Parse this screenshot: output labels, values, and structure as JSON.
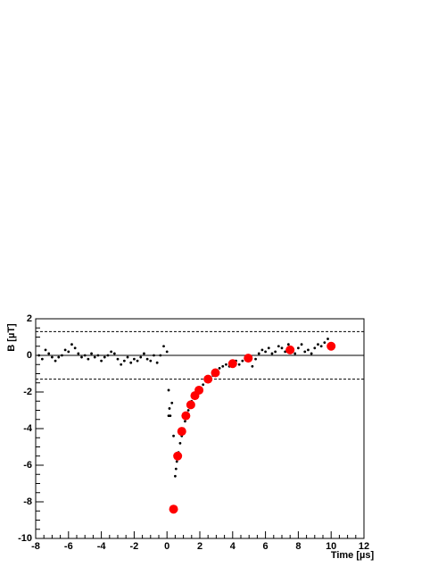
{
  "chart_data": {
    "type": "scatter",
    "x_label": "Time [µs]",
    "y_label": "B [µT]",
    "xlim": [
      -8,
      12
    ],
    "ylim": [
      -10,
      2
    ],
    "xticks": [
      -8,
      -6,
      -4,
      -2,
      0,
      2,
      4,
      6,
      8,
      10,
      12
    ],
    "yticks": [
      -10,
      -8,
      -6,
      -4,
      -2,
      0,
      2
    ],
    "reference_lines": [
      {
        "value": 1.3,
        "style": "dashed"
      },
      {
        "value": 0,
        "style": "solid"
      },
      {
        "value": -1.3,
        "style": "dashed"
      }
    ],
    "series": [
      {
        "color": "#000000",
        "size": 1.4,
        "x": [
          -7.8,
          -7.6,
          -7.4,
          -7.2,
          -7.0,
          -6.8,
          -6.6,
          -6.4,
          -6.2,
          -6.0,
          -5.8,
          -5.6,
          -5.4,
          -5.2,
          -5.0,
          -4.8,
          -4.6,
          -4.4,
          -4.2,
          -4.0,
          -3.8,
          -3.6,
          -3.4,
          -3.2,
          -3.0,
          -2.8,
          -2.6,
          -2.4,
          -2.2,
          -2.0,
          -1.8,
          -1.6,
          -1.4,
          -1.2,
          -1.0,
          -0.8,
          -0.6,
          -0.4,
          -0.2,
          0.0,
          0.1,
          0.15,
          0.1,
          0.2,
          0.3,
          0.4,
          0.5,
          0.55,
          0.6,
          0.7,
          0.8,
          0.9,
          1.0,
          1.1,
          1.2,
          1.3,
          1.4,
          1.5,
          1.6,
          1.8,
          2.0,
          2.2,
          2.4,
          2.6,
          2.8,
          3.0,
          3.2,
          3.4,
          3.6,
          3.8,
          4.0,
          4.2,
          4.4,
          4.6,
          4.8,
          5.0,
          5.2,
          5.4,
          5.6,
          5.8,
          6.0,
          6.2,
          6.4,
          6.6,
          6.8,
          7.0,
          7.2,
          7.4,
          7.6,
          7.8,
          8.0,
          8.2,
          8.4,
          8.6,
          8.8,
          9.0,
          9.2,
          9.4,
          9.6,
          9.8,
          10.0
        ],
        "values": [
          0.0,
          -0.2,
          0.3,
          0.1,
          -0.1,
          -0.3,
          -0.1,
          0.0,
          0.3,
          0.2,
          0.6,
          0.4,
          0.1,
          -0.1,
          0.0,
          -0.2,
          0.1,
          -0.1,
          0.0,
          -0.3,
          -0.1,
          0.0,
          0.2,
          0.1,
          -0.2,
          -0.5,
          -0.3,
          -0.1,
          -0.4,
          -0.2,
          -0.3,
          -0.1,
          0.1,
          -0.2,
          -0.3,
          0.0,
          -0.4,
          0.0,
          0.5,
          0.2,
          -1.9,
          -2.9,
          -3.3,
          -3.3,
          -2.6,
          -4.4,
          -6.6,
          -6.2,
          -5.8,
          -5.3,
          -4.8,
          -4.4,
          -4.0,
          -3.6,
          -3.3,
          -3.0,
          -2.7,
          -2.5,
          -2.3,
          -2.0,
          -1.8,
          -1.6,
          -1.4,
          -1.3,
          -1.1,
          -0.9,
          -0.7,
          -0.6,
          -0.5,
          -0.6,
          -0.4,
          -0.3,
          -0.5,
          -0.3,
          -0.1,
          -0.3,
          -0.6,
          -0.2,
          0.1,
          0.3,
          0.2,
          0.4,
          0.1,
          0.2,
          0.5,
          0.4,
          0.2,
          0.6,
          0.3,
          0.1,
          0.4,
          0.6,
          0.2,
          0.3,
          0.1,
          0.4,
          0.6,
          0.5,
          0.7,
          0.9,
          0.6
        ]
      },
      {
        "color": "#ff0000",
        "size": 5,
        "x": [
          0.4,
          0.65,
          0.9,
          1.15,
          1.45,
          1.7,
          1.95,
          2.5,
          2.95,
          4.0,
          4.95,
          7.5,
          10.0
        ],
        "values": [
          -8.4,
          -5.5,
          -4.15,
          -3.3,
          -2.7,
          -2.2,
          -1.9,
          -1.3,
          -0.95,
          -0.45,
          -0.15,
          0.3,
          0.5
        ]
      }
    ]
  }
}
